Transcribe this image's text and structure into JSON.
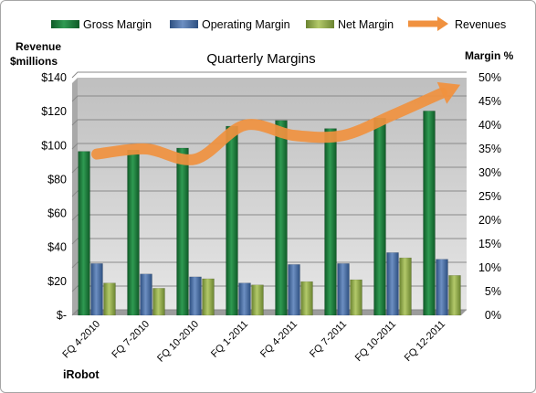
{
  "chart_data": {
    "type": "bar",
    "title": "Quarterly Margins",
    "left_axis_title": [
      "Revenue",
      "$millions"
    ],
    "right_axis_title": "Margin %",
    "brand": "iRobot",
    "categories": [
      "FQ 4-2010",
      "FQ 7-2010",
      "FQ 10-2010",
      "FQ 1-2011",
      "FQ 4-2011",
      "FQ 7-2011",
      "FQ 10-2011",
      "FQ 12-2011"
    ],
    "left_axis": {
      "ylim": [
        0,
        140
      ],
      "ticks": [
        0,
        20,
        40,
        60,
        80,
        100,
        120,
        140
      ],
      "tick_labels": [
        "$-",
        "$20",
        "$40",
        "$60",
        "$80",
        "$100",
        "$120",
        "$140"
      ]
    },
    "right_axis": {
      "ylim": [
        0,
        50
      ],
      "ticks": [
        0,
        5,
        10,
        15,
        20,
        25,
        30,
        35,
        40,
        45,
        50
      ],
      "tick_labels": [
        "0%",
        "5%",
        "10%",
        "15%",
        "20%",
        "25%",
        "30%",
        "35%",
        "40%",
        "45%",
        "50%"
      ]
    },
    "grid": true,
    "legend_position": "top",
    "series": [
      {
        "name": "Gross Margin",
        "axis": "right",
        "kind": "bar",
        "color": "#1e7a3c",
        "values": [
          34.5,
          34.8,
          35.2,
          39.8,
          41.0,
          39.3,
          41.5,
          43.0
        ]
      },
      {
        "name": "Operating Margin",
        "axis": "right",
        "kind": "bar",
        "color": "#4a6fa5",
        "values": [
          10.9,
          8.7,
          8.1,
          6.8,
          10.7,
          10.9,
          13.2,
          11.8
        ]
      },
      {
        "name": "Net Margin",
        "axis": "right",
        "kind": "bar",
        "color": "#8ea847",
        "values": [
          6.8,
          5.7,
          7.7,
          6.4,
          7.1,
          7.5,
          12.1,
          8.4
        ]
      },
      {
        "name": "Revenues",
        "axis": "left",
        "kind": "line",
        "color": "#f0913f",
        "values": [
          95,
          98,
          92,
          112,
          106,
          106,
          118,
          131
        ]
      }
    ]
  }
}
